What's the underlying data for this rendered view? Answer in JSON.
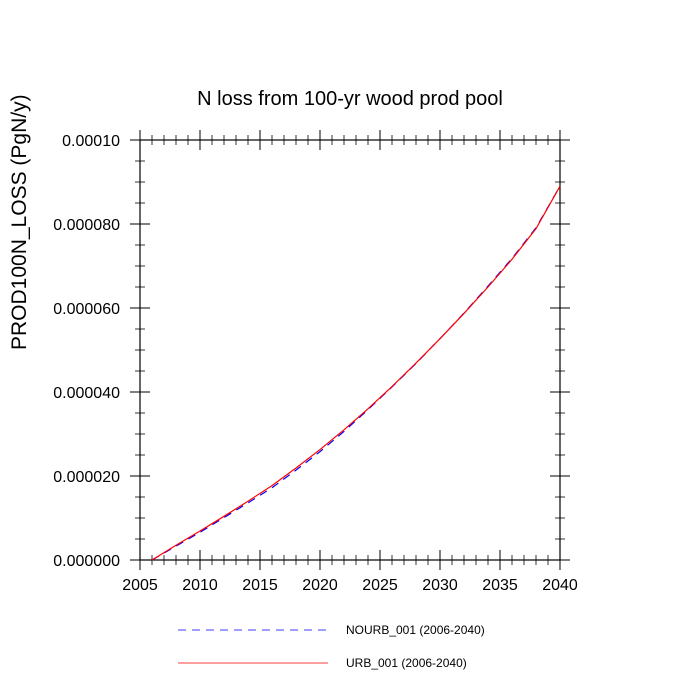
{
  "chart_data": {
    "type": "line",
    "title": "N loss from 100-yr wood prod pool",
    "ylabel": "PROD100N_LOSS  (PgN/y)",
    "xlabel": "",
    "xlim": [
      2005,
      2040
    ],
    "ylim": [
      0,
      0.0001
    ],
    "x_ticks": [
      2005,
      2010,
      2015,
      2020,
      2025,
      2030,
      2035,
      2040
    ],
    "x_tick_labels": [
      "2005",
      "2010",
      "2015",
      "2020",
      "2025",
      "2030",
      "2035",
      "2040"
    ],
    "y_ticks": [
      0,
      2e-05,
      4e-05,
      6e-05,
      8e-05,
      0.0001
    ],
    "y_tick_labels": [
      "0.000000",
      "0.000020",
      "0.000040",
      "0.000060",
      "0.000080",
      "0.00010"
    ],
    "grid": false,
    "legend_position": "bottom",
    "x": [
      2006,
      2008,
      2010,
      2012,
      2014,
      2016,
      2018,
      2020,
      2022,
      2024,
      2026,
      2028,
      2030,
      2032,
      2034,
      2036,
      2038,
      2040
    ],
    "series": [
      {
        "name": "NOURB_001 (2006-2040)",
        "color": "#0000ff",
        "dash": "dashed",
        "values": [
          0.0,
          3.3e-06,
          6.6e-06,
          1.01e-05,
          1.36e-05,
          1.72e-05,
          2.14e-05,
          2.58e-05,
          3.06e-05,
          3.58e-05,
          4.12e-05,
          4.68e-05,
          5.27e-05,
          5.88e-05,
          6.52e-05,
          7.18e-05,
          7.91e-05,
          8.9e-05
        ]
      },
      {
        "name": "URB_001 (2006-2040)",
        "color": "#ff0000",
        "dash": "solid",
        "values": [
          0.0,
          3.5e-06,
          6.9e-06,
          1.04e-05,
          1.4e-05,
          1.77e-05,
          2.19e-05,
          2.63e-05,
          3.1e-05,
          3.6e-05,
          4.13e-05,
          4.69e-05,
          5.27e-05,
          5.87e-05,
          6.5e-05,
          7.16e-05,
          7.89e-05,
          8.9e-05
        ]
      }
    ]
  }
}
